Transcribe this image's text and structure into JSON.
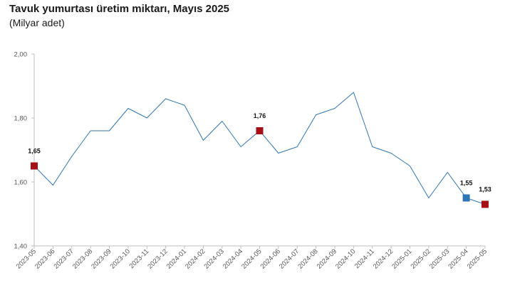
{
  "title": "Tavuk yumurtası üretim miktarı, Mayıs 2025",
  "subtitle": "(Milyar adet)",
  "colors": {
    "line": "#2e75b6",
    "marker_red": "#a50f15",
    "marker_blue": "#2e75b6",
    "axis": "#bfbfbf"
  },
  "chart_data": {
    "type": "line",
    "title": "Tavuk yumurtası üretim miktarı, Mayıs 2025",
    "subtitle": "(Milyar adet)",
    "xlabel": "",
    "ylabel": "",
    "ylim": [
      1.4,
      2.0
    ],
    "yticks": [
      "1,40",
      "1,60",
      "1,80",
      "2,00"
    ],
    "ytick_values": [
      1.4,
      1.6,
      1.8,
      2.0
    ],
    "grid": false,
    "categories": [
      "2023-05",
      "2023-06",
      "2023-07",
      "2023-08",
      "2023-09",
      "2023-10",
      "2023-11",
      "2023-12",
      "2024-01",
      "2024-02",
      "2024-03",
      "2024-04",
      "2024-05",
      "2024-06",
      "2024-07",
      "2024-08",
      "2024-09",
      "2024-10",
      "2024-11",
      "2024-12",
      "2025-01",
      "2025-02",
      "2025-03",
      "2025-04",
      "2025-05"
    ],
    "values": [
      1.65,
      1.59,
      1.68,
      1.76,
      1.76,
      1.83,
      1.8,
      1.86,
      1.84,
      1.73,
      1.79,
      1.71,
      1.76,
      1.69,
      1.71,
      1.81,
      1.83,
      1.88,
      1.71,
      1.69,
      1.65,
      1.55,
      1.63,
      1.55,
      1.53
    ],
    "markers": [
      {
        "index": 0,
        "label": "1,65",
        "color": "#a50f15"
      },
      {
        "index": 12,
        "label": "1,76",
        "color": "#a50f15"
      },
      {
        "index": 23,
        "label": "1,55",
        "color": "#2e75b6"
      },
      {
        "index": 24,
        "label": "1,53",
        "color": "#a50f15"
      }
    ]
  }
}
